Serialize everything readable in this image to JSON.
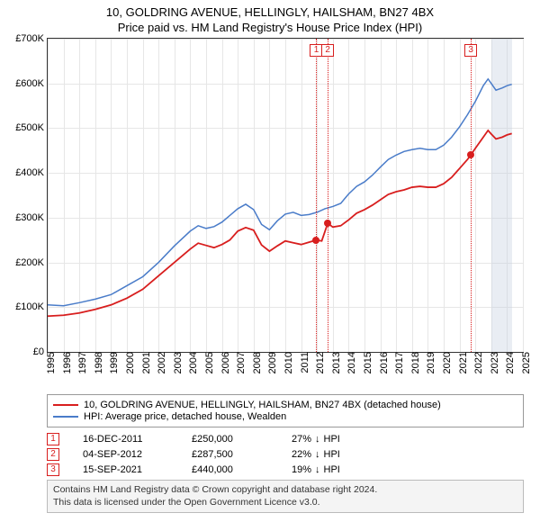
{
  "header": {
    "title": "10, GOLDRING AVENUE, HELLINGLY, HAILSHAM, BN27 4BX",
    "subtitle": "Price paid vs. HM Land Registry's House Price Index (HPI)"
  },
  "chart": {
    "type": "line",
    "background_color": "#ffffff",
    "grid_color": "#e6e6e6",
    "axis_color": "#333333",
    "y": {
      "min": 0,
      "max": 700000,
      "step": 100000,
      "labels": [
        "£0",
        "£100K",
        "£200K",
        "£300K",
        "£400K",
        "£500K",
        "£600K",
        "£700K"
      ]
    },
    "x": {
      "min": 1995,
      "max": 2025,
      "step": 1,
      "labels": [
        "1995",
        "1996",
        "1997",
        "1998",
        "1999",
        "2000",
        "2001",
        "2002",
        "2003",
        "2004",
        "2005",
        "2006",
        "2007",
        "2008",
        "2009",
        "2010",
        "2011",
        "2012",
        "2013",
        "2014",
        "2015",
        "2016",
        "2017",
        "2018",
        "2019",
        "2020",
        "2021",
        "2022",
        "2023",
        "2024",
        "2025"
      ]
    },
    "shade": {
      "from": 2023.0,
      "to": 2024.3,
      "color": "rgba(200,210,225,0.4)"
    },
    "series": [
      {
        "name_key": "legend.items.0",
        "color": "#d81e1e",
        "width": 1.8,
        "points": [
          [
            1995.0,
            80000
          ],
          [
            1996.0,
            82000
          ],
          [
            1997.0,
            87000
          ],
          [
            1998.0,
            95000
          ],
          [
            1999.0,
            105000
          ],
          [
            2000.0,
            120000
          ],
          [
            2001.0,
            140000
          ],
          [
            2002.0,
            170000
          ],
          [
            2003.0,
            200000
          ],
          [
            2004.0,
            230000
          ],
          [
            2004.5,
            243000
          ],
          [
            2005.0,
            238000
          ],
          [
            2005.5,
            233000
          ],
          [
            2006.0,
            240000
          ],
          [
            2006.5,
            250000
          ],
          [
            2007.0,
            270000
          ],
          [
            2007.5,
            278000
          ],
          [
            2008.0,
            272000
          ],
          [
            2008.5,
            239000
          ],
          [
            2009.0,
            225000
          ],
          [
            2009.5,
            237000
          ],
          [
            2010.0,
            248000
          ],
          [
            2010.5,
            244000
          ],
          [
            2011.0,
            240000
          ],
          [
            2011.96,
            250000
          ],
          [
            2012.3,
            248000
          ],
          [
            2012.68,
            287500
          ],
          [
            2013.0,
            279000
          ],
          [
            2013.5,
            282000
          ],
          [
            2014.0,
            295000
          ],
          [
            2014.5,
            310000
          ],
          [
            2015.0,
            318000
          ],
          [
            2015.5,
            328000
          ],
          [
            2016.0,
            340000
          ],
          [
            2016.5,
            352000
          ],
          [
            2017.0,
            358000
          ],
          [
            2017.5,
            362000
          ],
          [
            2018.0,
            368000
          ],
          [
            2018.5,
            370000
          ],
          [
            2019.0,
            368000
          ],
          [
            2019.5,
            368000
          ],
          [
            2020.0,
            376000
          ],
          [
            2020.5,
            390000
          ],
          [
            2021.0,
            410000
          ],
          [
            2021.5,
            430000
          ],
          [
            2021.71,
            440000
          ],
          [
            2022.0,
            455000
          ],
          [
            2022.5,
            480000
          ],
          [
            2022.8,
            495000
          ],
          [
            2023.0,
            487000
          ],
          [
            2023.3,
            476000
          ],
          [
            2023.7,
            480000
          ],
          [
            2024.0,
            485000
          ],
          [
            2024.3,
            488000
          ]
        ]
      },
      {
        "name_key": "legend.items.1",
        "color": "#4a7cc9",
        "width": 1.5,
        "points": [
          [
            1995.0,
            105000
          ],
          [
            1996.0,
            103000
          ],
          [
            1997.0,
            110000
          ],
          [
            1998.0,
            118000
          ],
          [
            1999.0,
            128000
          ],
          [
            2000.0,
            148000
          ],
          [
            2001.0,
            168000
          ],
          [
            2002.0,
            200000
          ],
          [
            2003.0,
            237000
          ],
          [
            2004.0,
            270000
          ],
          [
            2004.5,
            282000
          ],
          [
            2005.0,
            276000
          ],
          [
            2005.5,
            280000
          ],
          [
            2006.0,
            290000
          ],
          [
            2007.0,
            320000
          ],
          [
            2007.5,
            330000
          ],
          [
            2008.0,
            318000
          ],
          [
            2008.5,
            285000
          ],
          [
            2009.0,
            273000
          ],
          [
            2009.5,
            293000
          ],
          [
            2010.0,
            308000
          ],
          [
            2010.5,
            312000
          ],
          [
            2011.0,
            305000
          ],
          [
            2011.5,
            307000
          ],
          [
            2012.0,
            312000
          ],
          [
            2012.5,
            320000
          ],
          [
            2013.0,
            325000
          ],
          [
            2013.5,
            332000
          ],
          [
            2014.0,
            353000
          ],
          [
            2014.5,
            370000
          ],
          [
            2015.0,
            380000
          ],
          [
            2015.5,
            395000
          ],
          [
            2016.0,
            413000
          ],
          [
            2016.5,
            430000
          ],
          [
            2017.0,
            440000
          ],
          [
            2017.5,
            448000
          ],
          [
            2018.0,
            452000
          ],
          [
            2018.5,
            455000
          ],
          [
            2019.0,
            452000
          ],
          [
            2019.5,
            452000
          ],
          [
            2020.0,
            462000
          ],
          [
            2020.5,
            480000
          ],
          [
            2021.0,
            503000
          ],
          [
            2021.5,
            530000
          ],
          [
            2022.0,
            560000
          ],
          [
            2022.5,
            595000
          ],
          [
            2022.8,
            610000
          ],
          [
            2023.0,
            600000
          ],
          [
            2023.3,
            585000
          ],
          [
            2023.7,
            590000
          ],
          [
            2024.0,
            595000
          ],
          [
            2024.3,
            598000
          ]
        ]
      }
    ],
    "sale_dots": {
      "color": "#d81e1e",
      "radius": 4
    }
  },
  "markers": [
    {
      "idx": "1",
      "x": 2011.96,
      "y": 250000,
      "color": "#d81e1e"
    },
    {
      "idx": "2",
      "x": 2012.68,
      "y": 287500,
      "color": "#d81e1e"
    },
    {
      "idx": "3",
      "x": 2021.71,
      "y": 440000,
      "color": "#d81e1e"
    }
  ],
  "legend": {
    "items": [
      "10, GOLDRING AVENUE, HELLINGLY, HAILSHAM, BN27 4BX (detached house)",
      "HPI: Average price, detached house, Wealden"
    ],
    "colors": [
      "#d81e1e",
      "#4a7cc9"
    ]
  },
  "sales": [
    {
      "idx": "1",
      "date": "16-DEC-2011",
      "price": "£250,000",
      "diff": "27%",
      "arrow": "↓",
      "vs": "HPI",
      "color": "#d81e1e"
    },
    {
      "idx": "2",
      "date": "04-SEP-2012",
      "price": "£287,500",
      "diff": "22%",
      "arrow": "↓",
      "vs": "HPI",
      "color": "#d81e1e"
    },
    {
      "idx": "3",
      "date": "15-SEP-2021",
      "price": "£440,000",
      "diff": "19%",
      "arrow": "↓",
      "vs": "HPI",
      "color": "#d81e1e"
    }
  ],
  "attribution": {
    "line1": "Contains HM Land Registry data © Crown copyright and database right 2024.",
    "line2": "This data is licensed under the Open Government Licence v3.0."
  }
}
